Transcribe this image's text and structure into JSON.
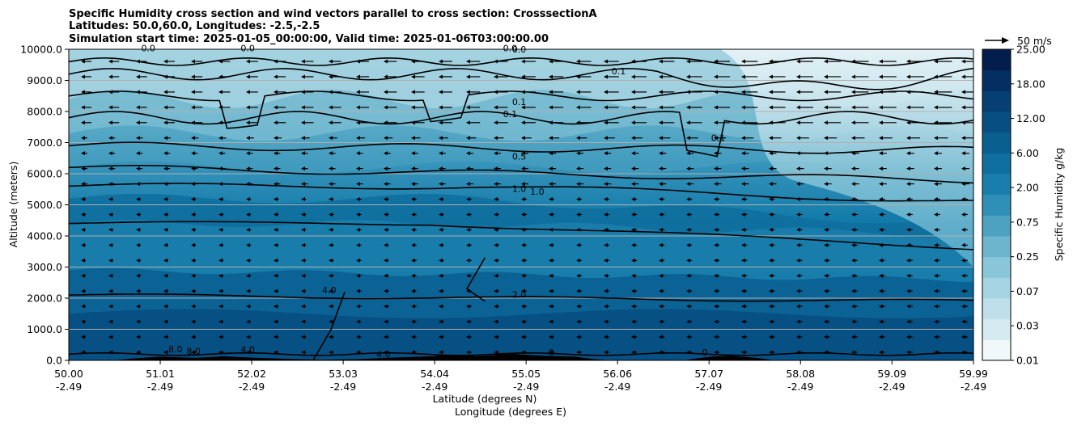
{
  "chart_data": {
    "type": "heatmap",
    "title_lines": [
      "Specific Humidity cross section and wind vectors parallel to cross section: CrosssectionA",
      "Latitudes: 50.0,60.0, Longitudes: -2.5,-2.5",
      "Simulation start time: 2025-01-05_00:00:00, Valid time: 2025-01-06T03:00:00.00"
    ],
    "xlabel_lines": [
      "Latitude (degrees N)",
      "Longitude (degrees E)"
    ],
    "ylabel": "Altitude (meters)",
    "colorbar_label": "Specific Humidity g/kg",
    "x_ticks": [
      {
        "lat": "50.00",
        "lon": "-2.49"
      },
      {
        "lat": "51.01",
        "lon": "-2.49"
      },
      {
        "lat": "52.02",
        "lon": "-2.49"
      },
      {
        "lat": "53.03",
        "lon": "-2.49"
      },
      {
        "lat": "54.04",
        "lon": "-2.49"
      },
      {
        "lat": "55.05",
        "lon": "-2.49"
      },
      {
        "lat": "56.06",
        "lon": "-2.49"
      },
      {
        "lat": "57.07",
        "lon": "-2.49"
      },
      {
        "lat": "58.08",
        "lon": "-2.49"
      },
      {
        "lat": "59.09",
        "lon": "-2.49"
      },
      {
        "lat": "59.99",
        "lon": "-2.49"
      }
    ],
    "xlim": [
      50.0,
      59.99
    ],
    "y_ticks": [
      "0.0",
      "1000.0",
      "2000.0",
      "3000.0",
      "4000.0",
      "5000.0",
      "6000.0",
      "7000.0",
      "8000.0",
      "9000.0",
      "10000.0"
    ],
    "ylim": [
      0,
      10000
    ],
    "grid": "horizontal",
    "colorbar_levels": [
      "0.01",
      "0.03",
      "0.07",
      "0.25",
      "0.75",
      "2.00",
      "6.00",
      "12.00",
      "18.00",
      "25.00"
    ],
    "colormap_colors": [
      "#f1f8fa",
      "#d6ebf1",
      "#bfe0ea",
      "#a6d4e2",
      "#8ac6d9",
      "#6cb5cd",
      "#4da2c1",
      "#2f8fb6",
      "#1a7eac",
      "#0f6f9f",
      "#0a5f91",
      "#074f82",
      "#063f73",
      "#052f62",
      "#031e4c"
    ],
    "quiver_key": "50 m/s",
    "contour_labels": [
      "0.0",
      "0.0",
      "0.0",
      "0.0",
      "0.1",
      "0.1",
      "0.1",
      "0.1",
      "0.5",
      "1.0",
      "1.0",
      "2.0",
      "4.0",
      "4.0",
      "8.0",
      "8.0",
      "4.0",
      "0",
      "0"
    ],
    "terrain_color": "#000000"
  }
}
